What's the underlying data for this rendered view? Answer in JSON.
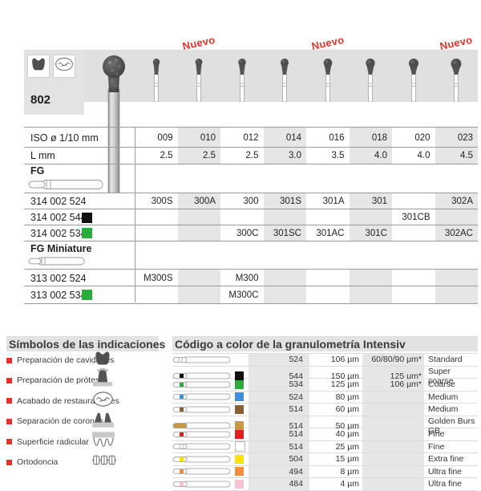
{
  "product_table": {
    "model": "802",
    "nuevo_label": "Nuevo",
    "nuevo_columns": [
      1,
      4,
      7
    ],
    "iso_label": "ISO ø 1/10 mm",
    "iso_values": [
      "009",
      "010",
      "012",
      "014",
      "016",
      "018",
      "020",
      "023"
    ],
    "l_label": "L mm",
    "l_values": [
      "2.5",
      "2.5",
      "2.5",
      "3.0",
      "3.5",
      "4.0",
      "4.0",
      "4.5"
    ],
    "fg_label": "FG",
    "fg_rows": [
      {
        "ref": "314 002 524",
        "square": null,
        "values": [
          "300S",
          "300A",
          "300",
          "301S",
          "301A",
          "301",
          "",
          "302A"
        ]
      },
      {
        "ref": "314 002 544",
        "square": "#111111",
        "values": [
          "",
          "",
          "",
          "",
          "",
          "",
          "301CB",
          ""
        ]
      },
      {
        "ref": "314 002 534",
        "square": "#2cab3c",
        "values": [
          "",
          "",
          "300C",
          "301SC",
          "301AC",
          "301C",
          "",
          "302AC"
        ]
      }
    ],
    "fg_miniature_label": "FG Miniature",
    "fg_miniature_rows": [
      {
        "ref": "313 002 524",
        "square": null,
        "values": [
          "M300S",
          "",
          "M300",
          "",
          "",
          "",
          "",
          ""
        ]
      },
      {
        "ref": "313 002 534",
        "square": "#2cab3c",
        "values": [
          "",
          "",
          "M300C",
          "",
          "",
          "",
          "",
          ""
        ]
      }
    ],
    "indication_icons": [
      "tooth-cavity",
      "restoration-finishing"
    ]
  },
  "symbols_section": {
    "title": "Símbolos de las indicaciones",
    "items": [
      {
        "label": "Preparación de cavidades",
        "icon": "tooth-cavity"
      },
      {
        "label": "Preparación de prótesis",
        "icon": "crown-prep"
      },
      {
        "label": "Acabado de restauraciones",
        "icon": "restoration-finishing"
      },
      {
        "label": "Separación de coronas",
        "icon": "crown-separation"
      },
      {
        "label": "Superficie radicular",
        "icon": "root-surface"
      },
      {
        "label": "Ortodoncia",
        "icon": "braces"
      }
    ]
  },
  "grit_section": {
    "title": "Código a color de la granulometría Intensiv",
    "rows": [
      {
        "color": null,
        "band_style": "none",
        "code": "524",
        "grain": "106 µm",
        "alt_grain": "60/80/90 µm*",
        "name": "Standard"
      },
      {
        "color": "#111111",
        "band_style": "square",
        "code": "544",
        "grain": "150 µm",
        "alt_grain": "125 µm*",
        "name": "Super coarse"
      },
      {
        "color": "#2cab3c",
        "band_style": "square",
        "code": "534",
        "grain": "125 µm",
        "alt_grain": "106 µm*",
        "name": "Coarse"
      },
      {
        "color": "#3e8ede",
        "band_style": "square",
        "code": "524",
        "grain": "80 µm",
        "alt_grain": "",
        "name": "Medium"
      },
      {
        "color": "#8a5f35",
        "band_style": "square",
        "code": "514",
        "grain": "60 µm",
        "alt_grain": "",
        "name": "Medium"
      },
      {
        "color": "#c99a44",
        "band_style": "head",
        "code": "514",
        "grain": "50 µm",
        "alt_grain": "",
        "name": "Golden Burs GB"
      },
      {
        "color": "#e0201f",
        "band_style": "square",
        "code": "514",
        "grain": "40 µm",
        "alt_grain": "",
        "name": "Fine"
      },
      {
        "color": "#ffffff",
        "band_style": "square",
        "code": "514",
        "grain": "25 µm",
        "alt_grain": "",
        "name": "Fine"
      },
      {
        "color": "#ffe10a",
        "band_style": "square",
        "code": "504",
        "grain": "15 µm",
        "alt_grain": "",
        "name": "Extra fine"
      },
      {
        "color": "#f28e3d",
        "band_style": "square",
        "code": "494",
        "grain": "8 µm",
        "alt_grain": "",
        "name": "Ultra fine"
      },
      {
        "color": "#f6c2d0",
        "band_style": "square",
        "code": "484",
        "grain": "4 µm",
        "alt_grain": "",
        "name": "Ultra fine"
      }
    ]
  },
  "colors": {
    "accent_red": "#e5332a",
    "green": "#2cab3c",
    "shade_gray": "#e6e6e6",
    "band_gray": "#e0e0e0"
  }
}
